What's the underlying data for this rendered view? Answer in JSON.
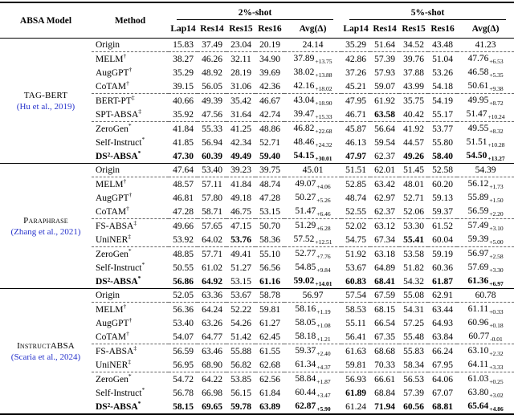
{
  "table": {
    "header": {
      "absa_model": "ABSA Model",
      "method": "Method",
      "shot2": "2%-shot",
      "shot5": "5%-shot",
      "subcolumns": [
        "Lap14",
        "Res14",
        "Res15",
        "Res16",
        "Avg(Δ)"
      ]
    },
    "dashed_after": [
      0,
      3,
      5
    ],
    "groups": [
      {
        "model": "TAG-BERT",
        "sc": false,
        "citation": "(Hu et al., 2019)",
        "rows": [
          {
            "m": "Origin",
            "s": "",
            "c2": [
              "15.83",
              "37.49",
              "23.04",
              "20.19",
              "24.14"
            ],
            "a2": "",
            "c5": [
              "35.29",
              "51.64",
              "34.52",
              "43.48",
              "41.23"
            ],
            "a5": ""
          },
          {
            "m": "MELM",
            "s": "†",
            "c2": [
              "38.27",
              "46.26",
              "32.11",
              "34.90",
              "37.89"
            ],
            "a2": "+13.75",
            "c5": [
              "42.86",
              "57.39",
              "39.76",
              "51.04",
              "47.76"
            ],
            "a5": "+6.53"
          },
          {
            "m": "AugGPT",
            "s": "†",
            "c2": [
              "35.29",
              "48.92",
              "28.19",
              "39.69",
              "38.02"
            ],
            "a2": "+13.88",
            "c5": [
              "37.26",
              "57.93",
              "37.88",
              "53.26",
              "46.58"
            ],
            "a5": "+5.35"
          },
          {
            "m": "CoTAM",
            "s": "†",
            "c2": [
              "39.15",
              "56.05",
              "31.06",
              "42.36",
              "42.16"
            ],
            "a2": "+18.02",
            "c5": [
              "45.21",
              "59.07",
              "43.99",
              "54.18",
              "50.61"
            ],
            "a5": "+9.38"
          },
          {
            "m": "BERT-PT",
            "s": "‡",
            "c2": [
              "40.66",
              "49.39",
              "35.42",
              "46.67",
              "43.04"
            ],
            "a2": "+18.90",
            "c5": [
              "47.95",
              "61.92",
              "35.75",
              "54.19",
              "49.95"
            ],
            "a5": "+8.72"
          },
          {
            "m": "SPT-ABSA",
            "s": "‡",
            "c2": [
              "35.92",
              "47.56",
              "31.64",
              "42.74",
              "39.47"
            ],
            "a2": "+15.33",
            "c5": [
              "46.71",
              "63.58",
              "40.42",
              "55.17",
              "51.47"
            ],
            "a5": "+10.24",
            "b5": [
              1
            ]
          },
          {
            "m": "ZeroGen",
            "s": "*",
            "c2": [
              "41.84",
              "55.33",
              "41.25",
              "48.86",
              "46.82"
            ],
            "a2": "+22.68",
            "c5": [
              "45.87",
              "56.64",
              "41.92",
              "53.77",
              "49.55"
            ],
            "a5": "+8.32"
          },
          {
            "m": "Self-Instruct",
            "s": "*",
            "c2": [
              "41.85",
              "56.94",
              "42.34",
              "52.71",
              "48.46"
            ],
            "a2": "+24.32",
            "c5": [
              "46.13",
              "59.54",
              "44.57",
              "55.80",
              "51.51"
            ],
            "a5": "+10.28"
          },
          {
            "m": "DS²-ABSA",
            "s": "*",
            "mb": true,
            "c2": [
              "47.30",
              "60.39",
              "49.49",
              "59.40",
              "54.15"
            ],
            "a2": "+30.01",
            "b2": [
              0,
              1,
              2,
              3,
              4
            ],
            "c5": [
              "47.97",
              "62.37",
              "49.26",
              "58.40",
              "54.50"
            ],
            "a5": "+13.27",
            "b5": [
              0,
              2,
              3,
              4
            ]
          }
        ]
      },
      {
        "model": "Paraphrase",
        "sc": true,
        "citation": "(Zhang et al., 2021)",
        "rows": [
          {
            "m": "Origin",
            "s": "",
            "c2": [
              "47.64",
              "53.40",
              "39.23",
              "39.75",
              "45.01"
            ],
            "a2": "",
            "c5": [
              "51.51",
              "62.01",
              "51.45",
              "52.58",
              "54.39"
            ],
            "a5": ""
          },
          {
            "m": "MELM",
            "s": "†",
            "c2": [
              "48.57",
              "57.11",
              "41.84",
              "48.74",
              "49.07"
            ],
            "a2": "+4.06",
            "c5": [
              "52.85",
              "63.42",
              "48.01",
              "60.20",
              "56.12"
            ],
            "a5": "+1.73"
          },
          {
            "m": "AugGPT",
            "s": "†",
            "c2": [
              "46.81",
              "57.80",
              "49.18",
              "47.28",
              "50.27"
            ],
            "a2": "+5.26",
            "c5": [
              "48.74",
              "62.97",
              "52.71",
              "59.13",
              "55.89"
            ],
            "a5": "+1.50"
          },
          {
            "m": "CoTAM",
            "s": "†",
            "c2": [
              "47.28",
              "58.71",
              "46.75",
              "53.15",
              "51.47"
            ],
            "a2": "+6.46",
            "c5": [
              "52.55",
              "62.37",
              "52.06",
              "59.37",
              "56.59"
            ],
            "a5": "+2.20"
          },
          {
            "m": "FS-ABSA",
            "s": "‡",
            "c2": [
              "49.66",
              "57.65",
              "47.15",
              "50.70",
              "51.29"
            ],
            "a2": "+6.28",
            "c5": [
              "52.02",
              "63.12",
              "53.30",
              "61.52",
              "57.49"
            ],
            "a5": "+3.10"
          },
          {
            "m": "UniNER",
            "s": "‡",
            "c2": [
              "53.92",
              "64.02",
              "53.76",
              "58.36",
              "57.52"
            ],
            "a2": "+12.51",
            "b2": [
              2
            ],
            "c5": [
              "54.75",
              "67.34",
              "55.41",
              "60.04",
              "59.39"
            ],
            "a5": "+5.00",
            "b5": [
              2
            ]
          },
          {
            "m": "ZeroGen",
            "s": "*",
            "c2": [
              "48.85",
              "57.71",
              "49.41",
              "55.10",
              "52.77"
            ],
            "a2": "+7.76",
            "c5": [
              "51.92",
              "63.18",
              "53.58",
              "59.19",
              "56.97"
            ],
            "a5": "+2.58"
          },
          {
            "m": "Self-Instruct",
            "s": "*",
            "c2": [
              "50.55",
              "61.02",
              "51.27",
              "56.56",
              "54.85"
            ],
            "a2": "+9.84",
            "c5": [
              "53.67",
              "64.89",
              "51.82",
              "60.36",
              "57.69"
            ],
            "a5": "+3.30"
          },
          {
            "m": "DS²-ABSA",
            "s": "*",
            "mb": true,
            "c2": [
              "56.86",
              "64.92",
              "53.15",
              "61.16",
              "59.02"
            ],
            "a2": "+14.01",
            "b2": [
              0,
              1,
              3,
              4
            ],
            "c5": [
              "60.83",
              "68.41",
              "54.32",
              "61.87",
              "61.36"
            ],
            "a5": "+6.97",
            "b5": [
              0,
              1,
              3,
              4
            ]
          }
        ]
      },
      {
        "model": "InstructABSA",
        "sc": true,
        "citation": "(Scaria et al., 2024)",
        "rows": [
          {
            "m": "Origin",
            "s": "",
            "c2": [
              "52.05",
              "63.36",
              "53.67",
              "58.78",
              "56.97"
            ],
            "a2": "",
            "c5": [
              "57.54",
              "67.59",
              "55.08",
              "62.91",
              "60.78"
            ],
            "a5": ""
          },
          {
            "m": "MELM",
            "s": "†",
            "c2": [
              "56.36",
              "64.24",
              "52.22",
              "59.81",
              "58.16"
            ],
            "a2": "+1.19",
            "c5": [
              "58.53",
              "68.15",
              "54.31",
              "63.44",
              "61.11"
            ],
            "a5": "+0.33"
          },
          {
            "m": "AugGPT",
            "s": "†",
            "c2": [
              "53.40",
              "63.26",
              "54.26",
              "61.27",
              "58.05"
            ],
            "a2": "+1.08",
            "c5": [
              "55.11",
              "66.54",
              "57.25",
              "64.93",
              "60.96"
            ],
            "a5": "+0.18"
          },
          {
            "m": "CoTAM",
            "s": "†",
            "c2": [
              "54.07",
              "64.77",
              "51.42",
              "62.45",
              "58.18"
            ],
            "a2": "+1.21",
            "c5": [
              "56.41",
              "67.35",
              "55.48",
              "63.84",
              "60.77"
            ],
            "a5": "-0.01"
          },
          {
            "m": "FS-ABSA",
            "s": "‡",
            "c2": [
              "56.59",
              "63.46",
              "55.88",
              "61.55",
              "59.37"
            ],
            "a2": "+2.40",
            "c5": [
              "61.63",
              "68.68",
              "55.83",
              "66.24",
              "63.10"
            ],
            "a5": "+2.32"
          },
          {
            "m": "UniNER",
            "s": "‡",
            "c2": [
              "56.95",
              "68.90",
              "56.82",
              "62.68",
              "61.34"
            ],
            "a2": "+4.37",
            "c5": [
              "59.81",
              "70.33",
              "58.34",
              "67.95",
              "64.11"
            ],
            "a5": "+3.33"
          },
          {
            "m": "ZeroGen",
            "s": "*",
            "c2": [
              "54.72",
              "64.22",
              "53.85",
              "62.56",
              "58.84"
            ],
            "a2": "+1.87",
            "c5": [
              "56.93",
              "66.61",
              "56.53",
              "64.06",
              "61.03"
            ],
            "a5": "+0.25"
          },
          {
            "m": "Self-Instruct",
            "s": "*",
            "c2": [
              "56.78",
              "66.98",
              "56.15",
              "61.84",
              "60.44"
            ],
            "a2": "+3.47",
            "c5": [
              "61.89",
              "68.84",
              "57.39",
              "67.07",
              "63.80"
            ],
            "a5": "+3.02",
            "b5": [
              0
            ]
          },
          {
            "m": "DS²-ABSA",
            "s": "*",
            "mb": true,
            "c2": [
              "58.15",
              "69.65",
              "59.78",
              "63.89",
              "62.87"
            ],
            "a2": "+5.90",
            "b2": [
              0,
              1,
              2,
              3,
              4
            ],
            "c5": [
              "61.24",
              "71.94",
              "60.56",
              "68.81",
              "65.64"
            ],
            "a5": "+4.86",
            "b5": [
              1,
              2,
              3,
              4
            ]
          }
        ]
      }
    ]
  }
}
